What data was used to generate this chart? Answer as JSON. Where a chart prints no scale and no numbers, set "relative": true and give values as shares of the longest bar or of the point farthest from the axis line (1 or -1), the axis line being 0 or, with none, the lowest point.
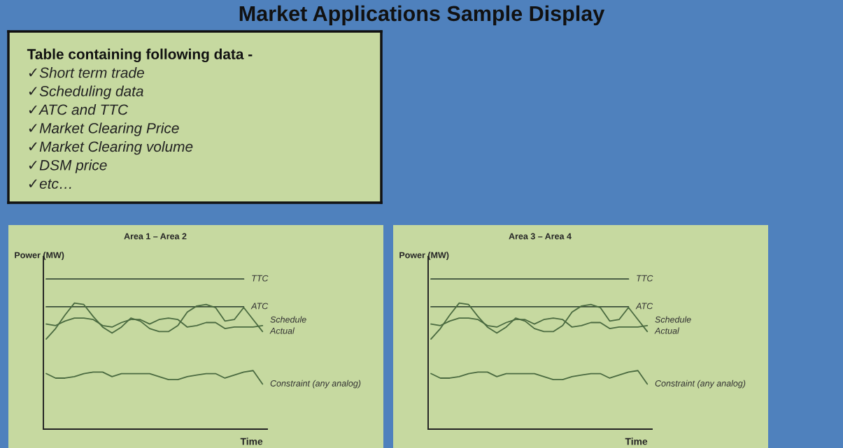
{
  "chart_data": [
    {
      "type": "other",
      "title": "Market Applications Sample Display",
      "subtitle": "Table containing following data -",
      "annotations": [
        "✓Short term trade",
        "✓Scheduling data",
        "✓ATC and TTC",
        "✓Market Clearing Price",
        "✓Market Clearing volume",
        "✓DSM price",
        "✓etc…"
      ]
    },
    {
      "type": "line",
      "title": "Area 1 – Area 2",
      "xlabel": "Time",
      "ylabel": "Power (MW)",
      "relative": true,
      "categories": [
        null,
        null,
        null,
        null,
        null,
        null,
        null,
        null,
        null,
        null,
        null,
        null,
        null,
        null,
        null,
        null,
        null,
        null,
        null,
        null,
        null,
        null,
        null,
        null
      ],
      "series": [
        {
          "name": "TTC",
          "color": "#3b4f3a",
          "values": [
            1,
            1,
            1,
            1,
            1,
            1,
            1,
            1,
            1,
            1,
            1,
            1,
            1,
            1,
            1,
            1,
            1,
            1,
            1,
            1,
            1,
            1,
            null,
            null
          ]
        },
        {
          "name": "ATC",
          "color": "#3b4f3a",
          "values": [
            0.815,
            0.815,
            0.815,
            0.815,
            0.815,
            0.815,
            0.815,
            0.815,
            0.815,
            0.815,
            0.815,
            0.815,
            0.815,
            0.815,
            0.815,
            0.815,
            0.815,
            0.815,
            0.815,
            0.815,
            0.815,
            0.815,
            null,
            null
          ]
        },
        {
          "name": "Schedule",
          "color": "#4a6a40",
          "values": [
            0.7,
            0.69,
            0.72,
            0.74,
            0.74,
            0.73,
            0.69,
            0.68,
            0.71,
            0.73,
            0.73,
            0.7,
            0.73,
            0.74,
            0.73,
            0.68,
            0.69,
            0.71,
            0.71,
            0.67,
            0.68,
            0.68,
            0.68,
            0.69
          ]
        },
        {
          "name": "Actual",
          "color": "#4a6a40",
          "values": [
            0.6,
            0.67,
            0.76,
            0.84,
            0.83,
            0.75,
            0.68,
            0.64,
            0.68,
            0.74,
            0.72,
            0.67,
            0.65,
            0.65,
            0.69,
            0.78,
            0.82,
            0.83,
            0.81,
            0.72,
            0.73,
            0.81,
            0.73,
            0.65
          ]
        },
        {
          "name": "Constraint (any analog)",
          "color": "#4a6a40",
          "values": [
            0.37,
            0.34,
            0.34,
            0.35,
            0.37,
            0.38,
            0.38,
            0.35,
            0.37,
            0.37,
            0.37,
            0.37,
            0.35,
            0.33,
            0.33,
            0.35,
            0.36,
            0.37,
            0.37,
            0.34,
            0.36,
            0.38,
            0.39,
            0.3
          ]
        }
      ]
    },
    {
      "type": "line",
      "title": "Area 3 – Area 4",
      "xlabel": "Time",
      "ylabel": "Power (MW)",
      "relative": true,
      "categories": [
        null,
        null,
        null,
        null,
        null,
        null,
        null,
        null,
        null,
        null,
        null,
        null,
        null,
        null,
        null,
        null,
        null,
        null,
        null,
        null,
        null,
        null,
        null,
        null
      ],
      "series": [
        {
          "name": "TTC",
          "color": "#3b4f3a",
          "values": [
            1,
            1,
            1,
            1,
            1,
            1,
            1,
            1,
            1,
            1,
            1,
            1,
            1,
            1,
            1,
            1,
            1,
            1,
            1,
            1,
            1,
            1,
            null,
            null
          ]
        },
        {
          "name": "ATC",
          "color": "#3b4f3a",
          "values": [
            0.815,
            0.815,
            0.815,
            0.815,
            0.815,
            0.815,
            0.815,
            0.815,
            0.815,
            0.815,
            0.815,
            0.815,
            0.815,
            0.815,
            0.815,
            0.815,
            0.815,
            0.815,
            0.815,
            0.815,
            0.815,
            0.815,
            null,
            null
          ]
        },
        {
          "name": "Schedule",
          "color": "#4a6a40",
          "values": [
            0.7,
            0.69,
            0.72,
            0.74,
            0.74,
            0.73,
            0.69,
            0.68,
            0.71,
            0.73,
            0.73,
            0.7,
            0.73,
            0.74,
            0.73,
            0.68,
            0.69,
            0.71,
            0.71,
            0.67,
            0.68,
            0.68,
            0.68,
            0.69
          ]
        },
        {
          "name": "Actual",
          "color": "#4a6a40",
          "values": [
            0.6,
            0.67,
            0.76,
            0.84,
            0.83,
            0.75,
            0.68,
            0.64,
            0.68,
            0.74,
            0.72,
            0.67,
            0.65,
            0.65,
            0.69,
            0.78,
            0.82,
            0.83,
            0.81,
            0.72,
            0.73,
            0.81,
            0.73,
            0.65
          ]
        },
        {
          "name": "Constraint (any analog)",
          "color": "#4a6a40",
          "values": [
            0.37,
            0.34,
            0.34,
            0.35,
            0.37,
            0.38,
            0.38,
            0.35,
            0.37,
            0.37,
            0.37,
            0.37,
            0.35,
            0.33,
            0.33,
            0.35,
            0.36,
            0.37,
            0.37,
            0.34,
            0.36,
            0.38,
            0.39,
            0.3
          ]
        }
      ]
    }
  ]
}
